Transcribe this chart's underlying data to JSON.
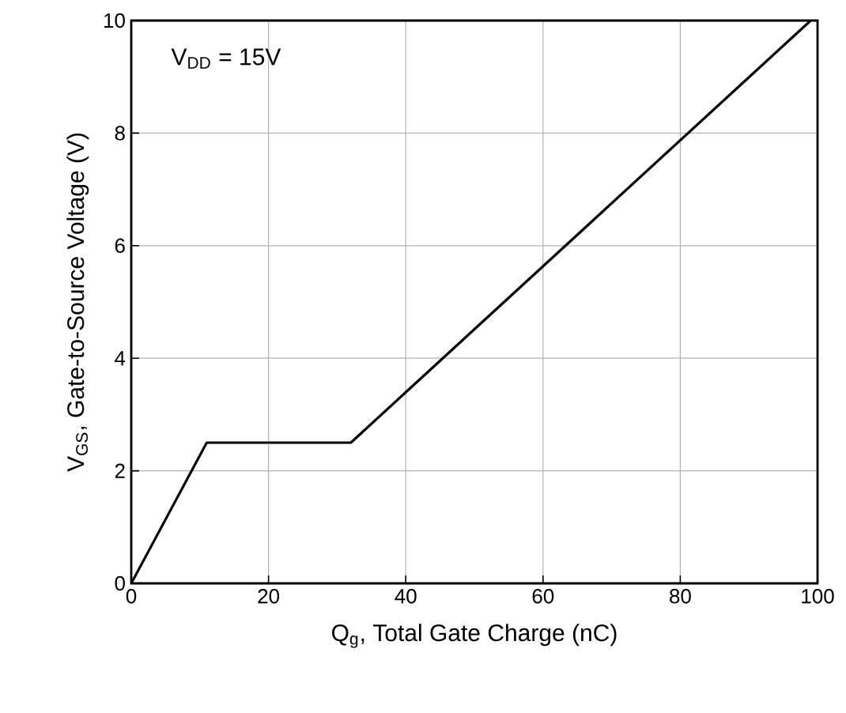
{
  "chart_data": {
    "type": "line",
    "xlabel": "Q$_{g}$, Total Gate Charge (nC)",
    "ylabel": "V$_{GS}$, Gate-to-Source Voltage (V)",
    "annotations": [
      "V$_{DD}$ = 15V"
    ],
    "x": [
      0,
      11,
      32,
      99
    ],
    "series": [
      {
        "color": "#000000",
        "values": [
          0,
          2.5,
          2.5,
          10
        ]
      }
    ],
    "xlim": [
      0,
      100
    ],
    "ylim": [
      0,
      10
    ],
    "xticks": [
      0,
      20,
      40,
      60,
      80,
      100
    ],
    "yticks": [
      0,
      2,
      4,
      6,
      8,
      10
    ],
    "grid": true
  }
}
